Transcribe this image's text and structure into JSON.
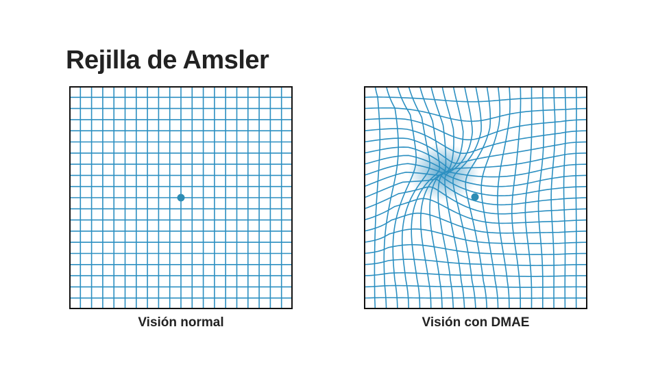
{
  "title": "Rejilla de Amsler",
  "panels": [
    {
      "caption": "Visión normal",
      "distorted": false
    },
    {
      "caption": "Visión con DMAE",
      "distorted": true
    }
  ],
  "grid": {
    "cells": 20
  },
  "colors": {
    "line": "#2b8fc1",
    "border": "#111111",
    "dot": "#2d8cb4",
    "blur": "#3a95c4",
    "text": "#222222"
  }
}
